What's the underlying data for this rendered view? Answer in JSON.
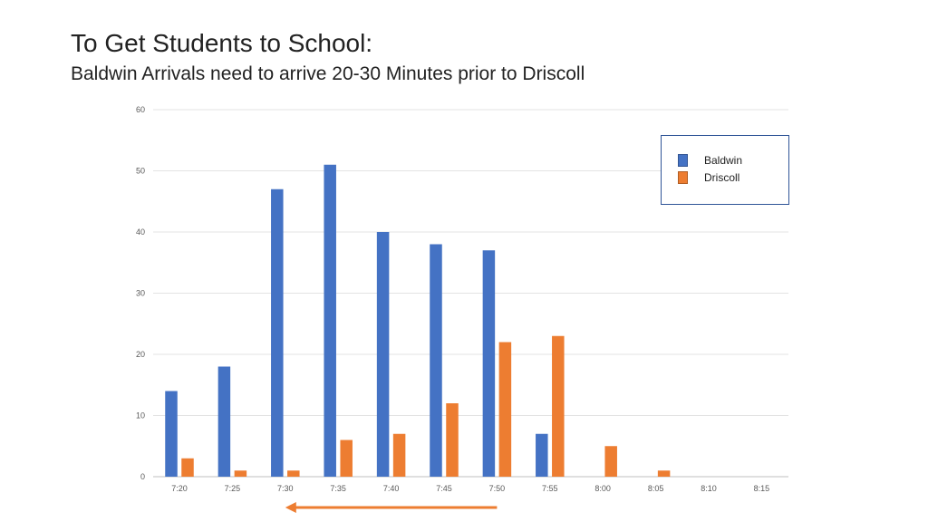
{
  "header": {
    "title": "To Get Students to School:",
    "subtitle": "Baldwin Arrivals need to arrive 20-30 Minutes prior to Driscoll"
  },
  "chart_data": {
    "type": "bar",
    "categories": [
      "7:20",
      "7:25",
      "7:30",
      "7:35",
      "7:40",
      "7:45",
      "7:50",
      "7:55",
      "8:00",
      "8:05",
      "8:10",
      "8:15"
    ],
    "series": [
      {
        "name": "Baldwin",
        "color": "#4472c4",
        "values": [
          14,
          18,
          47,
          51,
          40,
          38,
          37,
          7,
          0,
          0,
          0,
          0
        ]
      },
      {
        "name": "Driscoll",
        "color": "#ed7d31",
        "values": [
          3,
          1,
          1,
          6,
          7,
          12,
          22,
          23,
          5,
          1,
          0,
          0
        ]
      }
    ],
    "yticks": [
      "0",
      "10",
      "20",
      "30",
      "40",
      "50",
      "60"
    ],
    "ylim": [
      0,
      60
    ],
    "grid": true,
    "legend_position": "top-right",
    "annotation": {
      "type": "arrow",
      "direction": "left",
      "from_category": "7:50",
      "to_category": "7:30",
      "color": "#ed7d31"
    }
  }
}
